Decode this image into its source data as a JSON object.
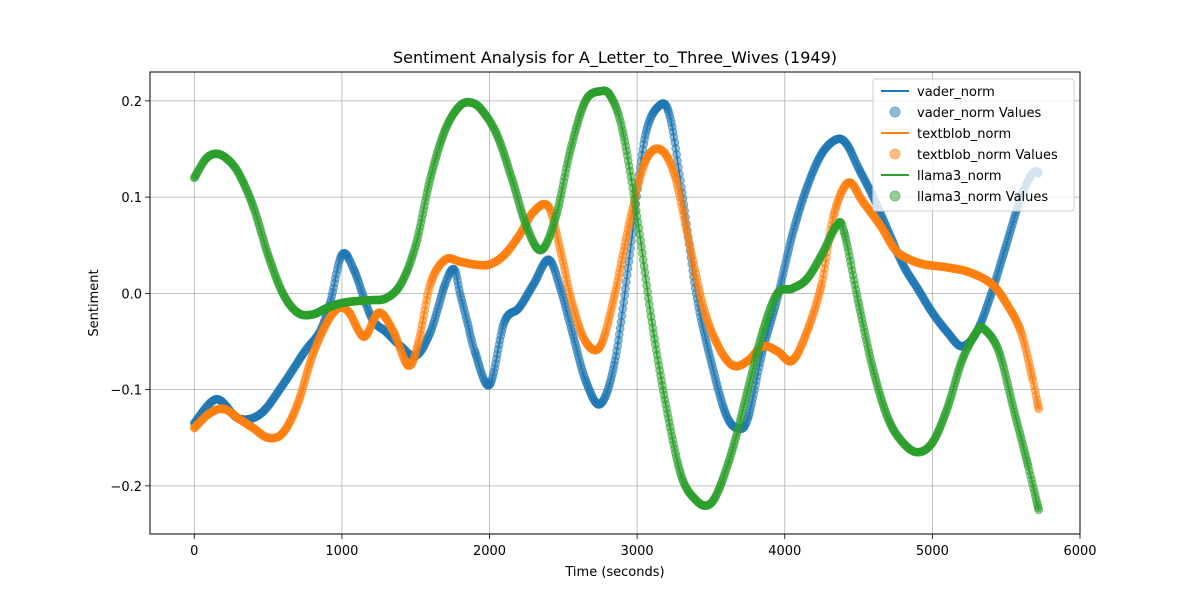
{
  "chart_data": {
    "type": "line",
    "title": "Sentiment Analysis for A_Letter_to_Three_Wives (1949)",
    "xlabel": "Time (seconds)",
    "ylabel": "Sentiment",
    "xlim": [
      -300,
      6000
    ],
    "ylim": [
      -0.25,
      0.23
    ],
    "xticks": [
      0,
      1000,
      2000,
      3000,
      4000,
      5000,
      6000
    ],
    "yticks": [
      -0.2,
      -0.1,
      0.0,
      0.1,
      0.2
    ],
    "xtick_labels": [
      "0",
      "1000",
      "2000",
      "3000",
      "4000",
      "5000",
      "6000"
    ],
    "ytick_labels": [
      "−0.2",
      "−0.1",
      "0.0",
      "0.1",
      "0.2"
    ],
    "grid": true,
    "legend_position": "top-right",
    "series": [
      {
        "name": "vader_norm",
        "points_name": "vader_norm Values",
        "color": "#1f77b4",
        "x": [
          0,
          150,
          300,
          450,
          600,
          750,
          850,
          920,
          1000,
          1080,
          1200,
          1300,
          1400,
          1500,
          1600,
          1700,
          1760,
          1800,
          1850,
          1900,
          2000,
          2100,
          2200,
          2300,
          2400,
          2480,
          2560,
          2650,
          2750,
          2850,
          2950,
          3050,
          3150,
          3220,
          3300,
          3400,
          3500,
          3600,
          3680,
          3750,
          3850,
          3950,
          4050,
          4150,
          4250,
          4350,
          4420,
          4500,
          4600,
          4700,
          4800,
          4900,
          5000,
          5100,
          5200,
          5300,
          5400,
          5500,
          5600,
          5680,
          5720
        ],
        "y": [
          -0.135,
          -0.11,
          -0.13,
          -0.125,
          -0.095,
          -0.06,
          -0.04,
          -0.01,
          0.04,
          0.025,
          -0.025,
          -0.04,
          -0.055,
          -0.065,
          -0.04,
          0.01,
          0.025,
          0.0,
          -0.03,
          -0.06,
          -0.095,
          -0.03,
          -0.015,
          0.01,
          0.035,
          0.005,
          -0.04,
          -0.09,
          -0.115,
          -0.07,
          0.04,
          0.16,
          0.195,
          0.185,
          0.11,
          0.0,
          -0.07,
          -0.125,
          -0.14,
          -0.13,
          -0.06,
          -0.005,
          0.06,
          0.11,
          0.145,
          0.16,
          0.155,
          0.13,
          0.1,
          0.065,
          0.03,
          0.005,
          -0.02,
          -0.04,
          -0.055,
          -0.04,
          0.0,
          0.05,
          0.1,
          0.125,
          0.125
        ]
      },
      {
        "name": "textblob_norm",
        "points_name": "textblob_norm Values",
        "color": "#ff7f0e",
        "x": [
          0,
          100,
          200,
          300,
          400,
          500,
          600,
          700,
          800,
          900,
          980,
          1050,
          1150,
          1250,
          1350,
          1450,
          1520,
          1600,
          1700,
          1800,
          1900,
          2000,
          2100,
          2200,
          2300,
          2400,
          2480,
          2560,
          2650,
          2750,
          2850,
          2950,
          3050,
          3150,
          3250,
          3350,
          3450,
          3550,
          3650,
          3750,
          3850,
          3950,
          4050,
          4150,
          4250,
          4330,
          4430,
          4530,
          4650,
          4750,
          4850,
          4950,
          5100,
          5250,
          5400,
          5500,
          5600,
          5680,
          5720
        ],
        "y": [
          -0.14,
          -0.125,
          -0.12,
          -0.13,
          -0.14,
          -0.15,
          -0.145,
          -0.115,
          -0.065,
          -0.03,
          -0.015,
          -0.02,
          -0.045,
          -0.02,
          -0.04,
          -0.075,
          -0.05,
          0.01,
          0.035,
          0.033,
          0.03,
          0.03,
          0.04,
          0.06,
          0.085,
          0.09,
          0.045,
          -0.01,
          -0.05,
          -0.055,
          0.0,
          0.075,
          0.135,
          0.15,
          0.125,
          0.055,
          -0.015,
          -0.055,
          -0.075,
          -0.07,
          -0.055,
          -0.06,
          -0.07,
          -0.04,
          0.01,
          0.08,
          0.115,
          0.095,
          0.07,
          0.045,
          0.035,
          0.03,
          0.027,
          0.022,
          0.01,
          -0.01,
          -0.04,
          -0.09,
          -0.12
        ]
      },
      {
        "name": "llama3_norm",
        "points_name": "llama3_norm Values",
        "color": "#2ca02c",
        "x": [
          0,
          80,
          150,
          220,
          300,
          400,
          500,
          600,
          700,
          800,
          900,
          1000,
          1100,
          1200,
          1300,
          1400,
          1500,
          1600,
          1700,
          1800,
          1880,
          1950,
          2050,
          2150,
          2250,
          2350,
          2450,
          2550,
          2650,
          2750,
          2820,
          2900,
          3000,
          3100,
          3200,
          3300,
          3400,
          3480,
          3550,
          3650,
          3750,
          3850,
          3950,
          4050,
          4150,
          4250,
          4350,
          4400,
          4500,
          4600,
          4700,
          4800,
          4900,
          5000,
          5100,
          5200,
          5300,
          5350,
          5450,
          5550,
          5650,
          5720
        ],
        "y": [
          0.12,
          0.14,
          0.145,
          0.14,
          0.125,
          0.09,
          0.04,
          0.0,
          -0.02,
          -0.022,
          -0.015,
          -0.01,
          -0.008,
          -0.007,
          -0.005,
          0.01,
          0.05,
          0.12,
          0.17,
          0.195,
          0.198,
          0.19,
          0.165,
          0.12,
          0.07,
          0.045,
          0.08,
          0.15,
          0.2,
          0.21,
          0.205,
          0.17,
          0.08,
          -0.03,
          -0.12,
          -0.19,
          -0.215,
          -0.22,
          -0.205,
          -0.16,
          -0.1,
          -0.04,
          0.0,
          0.005,
          0.015,
          0.04,
          0.07,
          0.065,
          -0.01,
          -0.08,
          -0.13,
          -0.155,
          -0.165,
          -0.155,
          -0.12,
          -0.07,
          -0.04,
          -0.037,
          -0.06,
          -0.12,
          -0.18,
          -0.225
        ]
      }
    ]
  }
}
